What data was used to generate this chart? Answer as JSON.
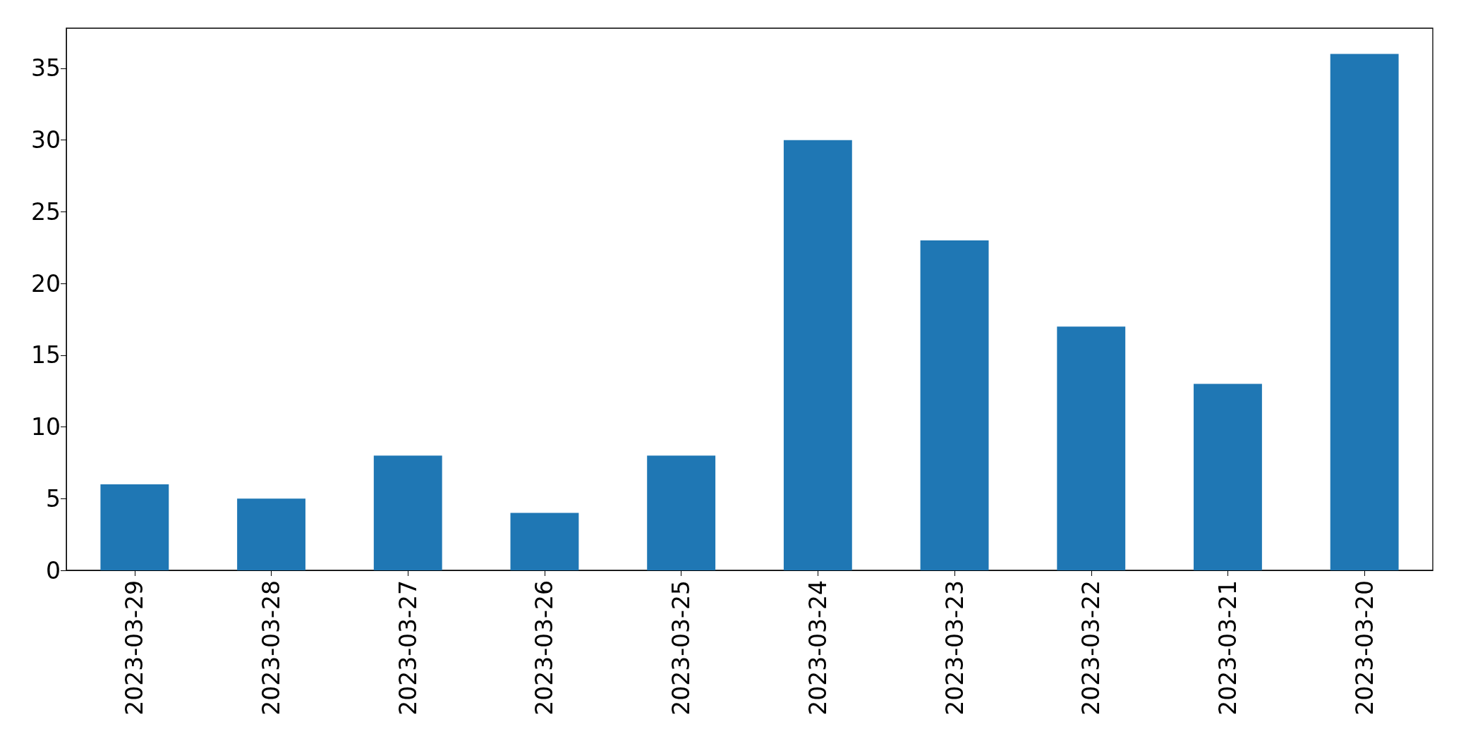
{
  "chart_data": {
    "type": "bar",
    "categories": [
      "2023-03-29",
      "2023-03-28",
      "2023-03-27",
      "2023-03-26",
      "2023-03-25",
      "2023-03-24",
      "2023-03-23",
      "2023-03-22",
      "2023-03-21",
      "2023-03-20"
    ],
    "values": [
      6,
      5,
      8,
      4,
      8,
      30,
      23,
      17,
      13,
      36
    ],
    "color": "#1f77b4",
    "ylim": [
      0,
      37.8
    ],
    "yticks": [
      0,
      5,
      10,
      15,
      20,
      25,
      30,
      35
    ],
    "grid": false
  }
}
